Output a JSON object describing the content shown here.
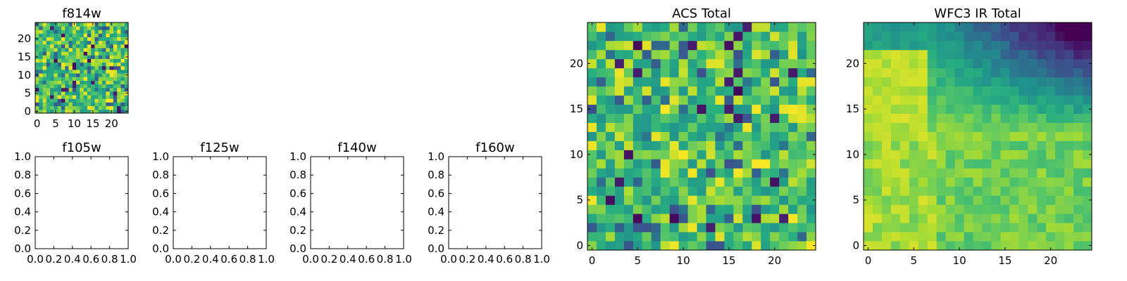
{
  "chart_data": [
    {
      "type": "heatmap",
      "title": "f814w",
      "xticks": [
        0,
        5,
        10,
        15,
        20
      ],
      "yticks": [
        0,
        5,
        10,
        15,
        20
      ],
      "xlim": [
        -0.5,
        24.5
      ],
      "ylim": [
        -0.5,
        24.5
      ],
      "grid_size": 25,
      "pattern": "noise",
      "colormap": "viridis"
    },
    {
      "type": "empty",
      "title": "f105w",
      "xticks": [
        "0.0",
        "0.2",
        "0.4",
        "0.6",
        "0.8",
        "1.0"
      ],
      "yticks": [
        "0.0",
        "0.2",
        "0.4",
        "0.6",
        "0.8",
        "1.0"
      ],
      "xlim": [
        0,
        1
      ],
      "ylim": [
        0,
        1
      ]
    },
    {
      "type": "empty",
      "title": "f125w",
      "xticks": [
        "0.0",
        "0.2",
        "0.4",
        "0.6",
        "0.8",
        "1.0"
      ],
      "yticks": [
        "0.0",
        "0.2",
        "0.4",
        "0.6",
        "0.8",
        "1.0"
      ],
      "xlim": [
        0,
        1
      ],
      "ylim": [
        0,
        1
      ]
    },
    {
      "type": "empty",
      "title": "f140w",
      "xticks": [
        "0.0",
        "0.2",
        "0.4",
        "0.6",
        "0.8",
        "1.0"
      ],
      "yticks": [
        "0.0",
        "0.2",
        "0.4",
        "0.6",
        "0.8",
        "1.0"
      ],
      "xlim": [
        0,
        1
      ],
      "ylim": [
        0,
        1
      ]
    },
    {
      "type": "empty",
      "title": "f160w",
      "xticks": [
        "0.0",
        "0.2",
        "0.4",
        "0.6",
        "0.8",
        "1.0"
      ],
      "yticks": [
        "0.0",
        "0.2",
        "0.4",
        "0.6",
        "0.8",
        "1.0"
      ],
      "xlim": [
        0,
        1
      ],
      "ylim": [
        0,
        1
      ]
    },
    {
      "type": "heatmap",
      "title": "ACS Total",
      "xticks": [
        0,
        5,
        10,
        15,
        20
      ],
      "yticks": [
        0,
        5,
        10,
        15,
        20
      ],
      "xlim": [
        -0.5,
        24.5
      ],
      "ylim": [
        -0.5,
        24.5
      ],
      "grid_size": 25,
      "pattern": "noise",
      "colormap": "viridis"
    },
    {
      "type": "heatmap",
      "title": "WFC3 IR Total",
      "xticks": [
        0,
        5,
        10,
        15,
        20
      ],
      "yticks": [
        0,
        5,
        10,
        15,
        20
      ],
      "xlim": [
        -0.5,
        24.5
      ],
      "ylim": [
        -0.5,
        24.5
      ],
      "grid_size": 25,
      "pattern": "gradient-high-bottom-left-low-top-right",
      "colormap": "viridis"
    }
  ]
}
